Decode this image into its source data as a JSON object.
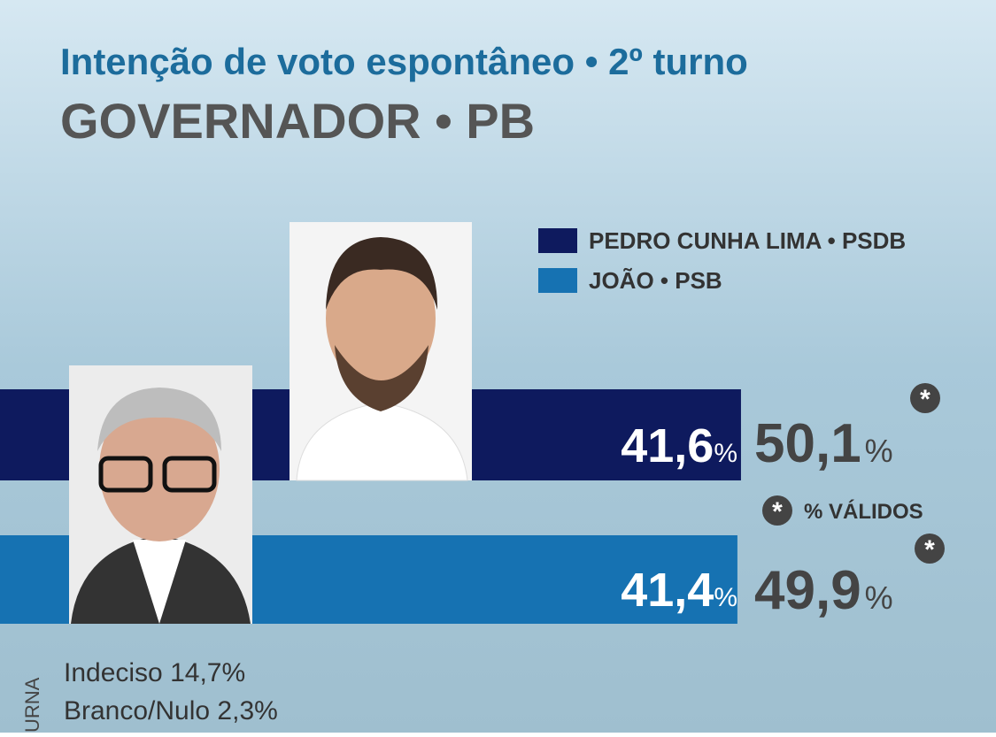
{
  "chart_data": {
    "type": "bar",
    "orientation": "horizontal",
    "title": "Intenção de voto espontâneo • 2º turno",
    "subtitle": "GOVERNADOR • PB",
    "categories": [
      "PEDRO CUNHA LIMA • PSDB",
      "JOÃO • PSB"
    ],
    "colors": [
      "#0e1a5e",
      "#1672b2"
    ],
    "values": [
      41.6,
      41.4
    ],
    "value_labels": [
      "41,6",
      "41,4"
    ],
    "unit": "%",
    "valid_values": [
      50.1,
      49.9
    ],
    "valid_value_labels": [
      "50,1",
      "49,9"
    ],
    "valid_note": "% VÁLIDOS",
    "xlim": [
      0,
      42
    ],
    "others": [
      "Indeciso 14,7%",
      "Branco/Nulo 2,3%"
    ],
    "side_label": "URNA"
  }
}
